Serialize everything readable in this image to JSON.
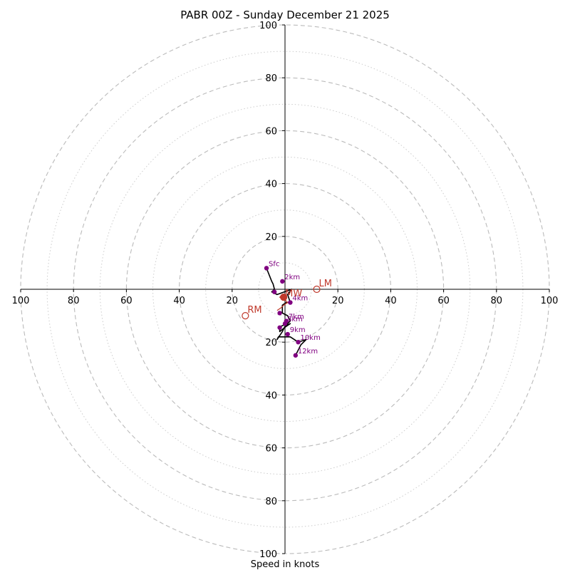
{
  "chart_data": {
    "type": "scatter",
    "title": "PABR 00Z - Sunday December 21 2025",
    "xlabel": "Speed in knots",
    "ylabel": "",
    "xlim": [
      -100,
      100
    ],
    "ylim": [
      -100,
      100
    ],
    "grid": true,
    "ring_major": [
      20,
      40,
      60,
      80,
      100
    ],
    "ring_minor": [
      10,
      30,
      50,
      70,
      90
    ],
    "x_ticks": [
      "100",
      "80",
      "60",
      "40",
      "20",
      "20",
      "40",
      "60",
      "80",
      "100"
    ],
    "y_ticks": [
      "100",
      "80",
      "60",
      "40",
      "20",
      "20",
      "40",
      "60",
      "80",
      "100"
    ],
    "x_tick_values": [
      -100,
      -80,
      -60,
      -40,
      -20,
      20,
      40,
      60,
      80,
      100
    ],
    "y_tick_values": [
      100,
      80,
      60,
      40,
      20,
      -20,
      -40,
      -60,
      -80,
      -100
    ],
    "hodograph": {
      "u": [
        -7,
        -5,
        -4.5,
        -4,
        -5,
        -3,
        2.5,
        1,
        2,
        0.5,
        -1,
        -1,
        1,
        2,
        1,
        -1.5,
        -2,
        -2,
        0.5,
        2,
        0,
        -1,
        -3,
        -2.5,
        2,
        5,
        8,
        6,
        4
      ],
      "v": [
        8,
        3,
        2,
        0,
        -1,
        -2,
        0,
        -2,
        -5,
        -5,
        -6,
        -9,
        -10,
        -12,
        -13,
        -14,
        -15,
        -16,
        -14,
        -13,
        -14,
        -16,
        -19,
        -18,
        -18,
        -20,
        -19,
        -21,
        -25
      ],
      "color": "#000000"
    },
    "height_points": [
      {
        "label": "Sfc",
        "u": -7,
        "v": 8
      },
      {
        "label": "2km",
        "u": -1,
        "v": 3
      },
      {
        "label": "",
        "u": -4,
        "v": -1
      },
      {
        "label": "4km",
        "u": 2,
        "v": -5
      },
      {
        "label": "",
        "u": -2,
        "v": -9
      },
      {
        "label": "7km",
        "u": 0.5,
        "v": -12
      },
      {
        "label": "8km",
        "u": 0,
        "v": -13
      },
      {
        "label": "",
        "u": -2,
        "v": -14.5
      },
      {
        "label": "9km",
        "u": 1,
        "v": -17
      },
      {
        "label": "10km",
        "u": 5,
        "v": -20
      },
      {
        "label": "12km",
        "u": 4,
        "v": -25
      }
    ],
    "point_color": "#800080",
    "storm_motion": {
      "color": "#c0392b",
      "mean_wind": {
        "label": "MW",
        "u": -0.5,
        "v": -3
      },
      "left_mover": {
        "label": "LM",
        "u": 12,
        "v": 0
      },
      "right_mover": {
        "label": "RM",
        "u": -15,
        "v": -10
      },
      "inner_path": {
        "u": [
          -1,
          -2,
          0,
          1,
          -0.5,
          -1.5,
          -3
        ],
        "v": [
          -2,
          -3,
          -4,
          -5,
          -6,
          -7,
          -8
        ]
      }
    }
  }
}
